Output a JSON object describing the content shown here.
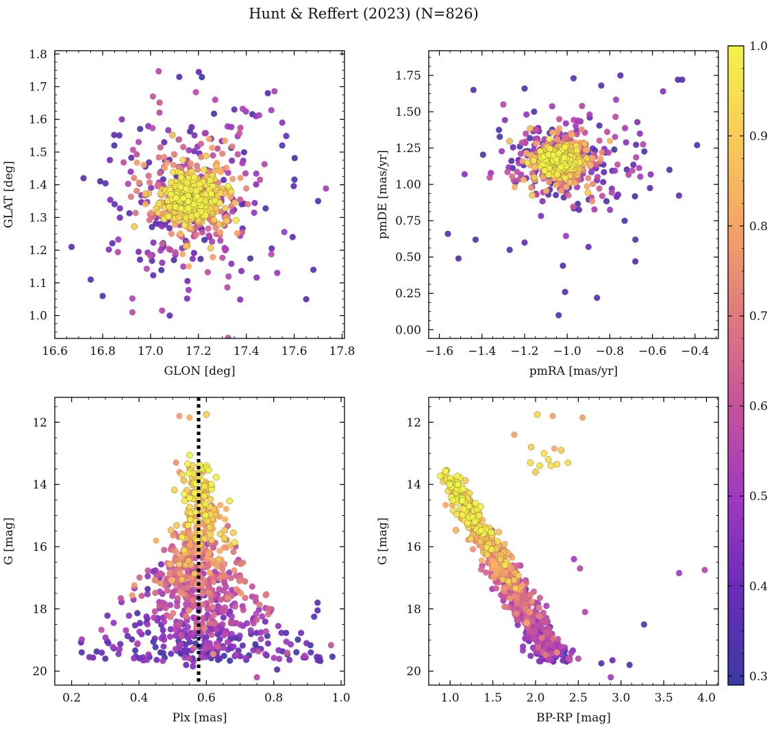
{
  "figure": {
    "title": "Hunt & Reffert (2023) (N=826)",
    "n_members": 826,
    "colorbar": {
      "label": "",
      "range": [
        0.29,
        1.0
      ],
      "ticks": [
        0.3,
        0.4,
        0.5,
        0.6,
        0.7,
        0.8,
        0.9,
        1.0
      ],
      "tick_labels": [
        "0.3",
        "0.4",
        "0.5",
        "0.6",
        "0.7",
        "0.8",
        "0.9",
        "1.0"
      ],
      "colormap": "plasma",
      "stops": [
        {
          "v": 0.29,
          "color": "#3b3aa3"
        },
        {
          "v": 0.4,
          "color": "#6a2cb8"
        },
        {
          "v": 0.5,
          "color": "#a03ac0"
        },
        {
          "v": 0.6,
          "color": "#c5529b"
        },
        {
          "v": 0.7,
          "color": "#de7a7e"
        },
        {
          "v": 0.8,
          "color": "#f4a466"
        },
        {
          "v": 0.9,
          "color": "#f8cc58"
        },
        {
          "v": 1.0,
          "color": "#f2f34a"
        }
      ]
    }
  },
  "chart_data": [
    {
      "id": "glon-glat",
      "type": "scatter",
      "title": "",
      "xlabel": "GLON [deg]",
      "ylabel": "GLAT [deg]",
      "xlim": [
        16.6,
        17.81
      ],
      "ylim": [
        0.93,
        1.81
      ],
      "yinvert": false,
      "xticks": [
        16.6,
        16.8,
        17.0,
        17.2,
        17.4,
        17.6,
        17.8
      ],
      "xtick_labels": [
        "16.6",
        "16.8",
        "17.0",
        "17.2",
        "17.4",
        "17.6",
        "17.8"
      ],
      "yticks": [
        1.0,
        1.1,
        1.2,
        1.3,
        1.4,
        1.5,
        1.6,
        1.7,
        1.8
      ],
      "ytick_labels": [
        "1.0",
        "1.1",
        "1.2",
        "1.3",
        "1.4",
        "1.5",
        "1.6",
        "1.7",
        "1.8"
      ],
      "sample": {
        "seed": 11,
        "count": 826,
        "kind": "sky",
        "cx": 17.17,
        "cy": 1.36,
        "sx": 0.16,
        "sy": 0.12
      },
      "points": [
        [
          17.12,
          1.73,
          0.35
        ],
        [
          17.49,
          1.68,
          0.35
        ],
        [
          16.88,
          1.6,
          0.45
        ],
        [
          16.67,
          1.21,
          0.36
        ],
        [
          16.72,
          1.42,
          0.35
        ],
        [
          16.8,
          1.06,
          0.35
        ],
        [
          16.75,
          1.11,
          0.35
        ],
        [
          17.08,
          1.0,
          0.4
        ],
        [
          17.65,
          1.05,
          0.35
        ],
        [
          17.7,
          1.35,
          0.35
        ],
        [
          17.68,
          1.14,
          0.36
        ],
        [
          17.55,
          1.52,
          0.35
        ],
        [
          17.44,
          1.61,
          0.45
        ],
        [
          17.27,
          1.66,
          0.55
        ],
        [
          17.01,
          1.67,
          0.6
        ],
        [
          17.35,
          1.63,
          0.4
        ],
        [
          17.55,
          1.59,
          0.45
        ]
      ],
      "annotations": []
    },
    {
      "id": "pmra-pmde",
      "type": "scatter",
      "title": "",
      "xlabel": "pmRA [mas/yr]",
      "ylabel": "pmDE [mas/yr]",
      "xlim": [
        -1.65,
        -0.29
      ],
      "ylim": [
        -0.06,
        1.92
      ],
      "yinvert": false,
      "xticks": [
        -1.6,
        -1.4,
        -1.2,
        -1.0,
        -0.8,
        -0.6,
        -0.4
      ],
      "xtick_labels": [
        "−1.6",
        "−1.4",
        "−1.2",
        "−1.0",
        "−0.8",
        "−0.6",
        "−0.4"
      ],
      "yticks": [
        0.0,
        0.25,
        0.5,
        0.75,
        1.0,
        1.25,
        1.5,
        1.75
      ],
      "ytick_labels": [
        "0.00",
        "0.25",
        "0.50",
        "0.75",
        "1.00",
        "1.25",
        "1.50",
        "1.75"
      ],
      "sample": {
        "seed": 23,
        "count": 826,
        "kind": "pm",
        "cx": -1.03,
        "cy": 1.17,
        "sx": 0.13,
        "sy": 0.14
      },
      "points": [
        [
          -1.44,
          1.65,
          0.35
        ],
        [
          -0.39,
          1.27,
          0.35
        ],
        [
          -0.46,
          1.72,
          0.35
        ],
        [
          -0.48,
          1.72,
          0.35
        ],
        [
          -0.52,
          1.1,
          0.35
        ],
        [
          -1.51,
          0.49,
          0.35
        ],
        [
          -1.56,
          0.66,
          0.35
        ],
        [
          -1.02,
          0.44,
          0.35
        ],
        [
          -1.01,
          0.26,
          0.35
        ],
        [
          -0.86,
          0.22,
          0.35
        ],
        [
          -1.04,
          0.1,
          0.35
        ],
        [
          -0.75,
          1.75,
          0.35
        ],
        [
          -0.84,
          1.68,
          0.35
        ],
        [
          -0.68,
          0.47,
          0.35
        ],
        [
          -0.97,
          1.73,
          0.35
        ],
        [
          -0.55,
          1.64,
          0.45
        ],
        [
          -1.2,
          1.66,
          0.35
        ],
        [
          -0.93,
          1.54,
          0.55
        ],
        [
          -1.3,
          1.55,
          0.55
        ],
        [
          -1.2,
          0.6,
          0.4
        ],
        [
          -0.9,
          0.57,
          0.4
        ],
        [
          -0.73,
          0.75,
          0.35
        ],
        [
          -0.68,
          0.62,
          0.35
        ],
        [
          -1.43,
          0.62,
          0.35
        ],
        [
          -1.27,
          0.55,
          0.35
        ]
      ],
      "annotations": []
    },
    {
      "id": "plx-g",
      "type": "scatter",
      "title": "",
      "xlabel": "Plx [mas]",
      "ylabel": "G [mag]",
      "xlim": [
        0.15,
        1.01
      ],
      "ylim": [
        11.2,
        20.45
      ],
      "yinvert": true,
      "xticks": [
        0.2,
        0.4,
        0.6,
        0.8,
        1.0
      ],
      "xtick_labels": [
        "0.2",
        "0.4",
        "0.6",
        "0.8",
        "1.0"
      ],
      "yticks": [
        12,
        14,
        16,
        18,
        20
      ],
      "ytick_labels": [
        "12",
        "14",
        "16",
        "18",
        "20"
      ],
      "sample": {
        "seed": 37,
        "count": 826,
        "kind": "plx",
        "plx0": 0.58
      },
      "reference_line": {
        "orientation": "vertical",
        "value": 0.577,
        "style": "dotted",
        "color": "#000000"
      },
      "points": [
        [
          0.52,
          11.8,
          0.78
        ],
        [
          0.55,
          11.85,
          0.82
        ],
        [
          0.6,
          11.75,
          0.9
        ],
        [
          0.51,
          13.3,
          0.75
        ],
        [
          0.52,
          13.6,
          0.78
        ],
        [
          0.23,
          19.4,
          0.35
        ],
        [
          0.3,
          19.6,
          0.35
        ],
        [
          0.93,
          17.8,
          0.35
        ],
        [
          0.93,
          18.05,
          0.35
        ],
        [
          0.92,
          18.25,
          0.35
        ],
        [
          0.91,
          19.4,
          0.35
        ],
        [
          0.75,
          20.2,
          0.55
        ],
        [
          0.81,
          19.95,
          0.35
        ],
        [
          0.54,
          19.8,
          0.4
        ],
        [
          0.56,
          19.85,
          0.45
        ],
        [
          0.62,
          19.45,
          0.75
        ]
      ],
      "annotations": []
    },
    {
      "id": "bprp-g",
      "type": "scatter",
      "title": "",
      "xlabel": "BP-RP [mag]",
      "ylabel": "G [mag]",
      "xlim": [
        0.75,
        4.14
      ],
      "ylim": [
        11.2,
        20.45
      ],
      "yinvert": true,
      "xticks": [
        1.0,
        1.5,
        2.0,
        2.5,
        3.0,
        3.5,
        4.0
      ],
      "xtick_labels": [
        "1.0",
        "1.5",
        "2.0",
        "2.5",
        "3.0",
        "3.5",
        "4.0"
      ],
      "yticks": [
        12,
        14,
        16,
        18,
        20
      ],
      "ytick_labels": [
        "12",
        "14",
        "16",
        "18",
        "20"
      ],
      "sample": {
        "seed": 53,
        "count": 826,
        "kind": "cmd"
      },
      "points": [
        [
          2.02,
          11.75,
          0.92
        ],
        [
          2.2,
          11.8,
          0.78
        ],
        [
          2.55,
          11.85,
          0.78
        ],
        [
          2.1,
          13.0,
          0.95
        ],
        [
          2.15,
          13.2,
          0.95
        ],
        [
          2.18,
          13.4,
          0.95
        ],
        [
          2.25,
          13.35,
          0.95
        ],
        [
          2.05,
          13.4,
          0.95
        ],
        [
          2.22,
          12.85,
          0.8
        ],
        [
          2.3,
          12.9,
          0.9
        ],
        [
          1.75,
          12.4,
          0.78
        ],
        [
          1.95,
          12.8,
          0.9
        ],
        [
          2.38,
          13.3,
          0.95
        ],
        [
          1.94,
          13.3,
          0.95
        ],
        [
          2.0,
          13.6,
          0.9
        ],
        [
          3.68,
          16.85,
          0.5
        ],
        [
          3.98,
          16.75,
          0.55
        ],
        [
          3.27,
          18.5,
          0.35
        ],
        [
          2.88,
          20.2,
          0.5
        ],
        [
          3.1,
          19.8,
          0.35
        ],
        [
          2.77,
          19.75,
          0.35
        ],
        [
          2.9,
          19.65,
          0.4
        ],
        [
          2.45,
          16.4,
          0.5
        ],
        [
          2.52,
          16.7,
          0.55
        ],
        [
          2.58,
          18.1,
          0.55
        ],
        [
          2.25,
          19.4,
          0.75
        ],
        [
          2.5,
          19.6,
          0.55
        ]
      ],
      "annotations": []
    }
  ]
}
